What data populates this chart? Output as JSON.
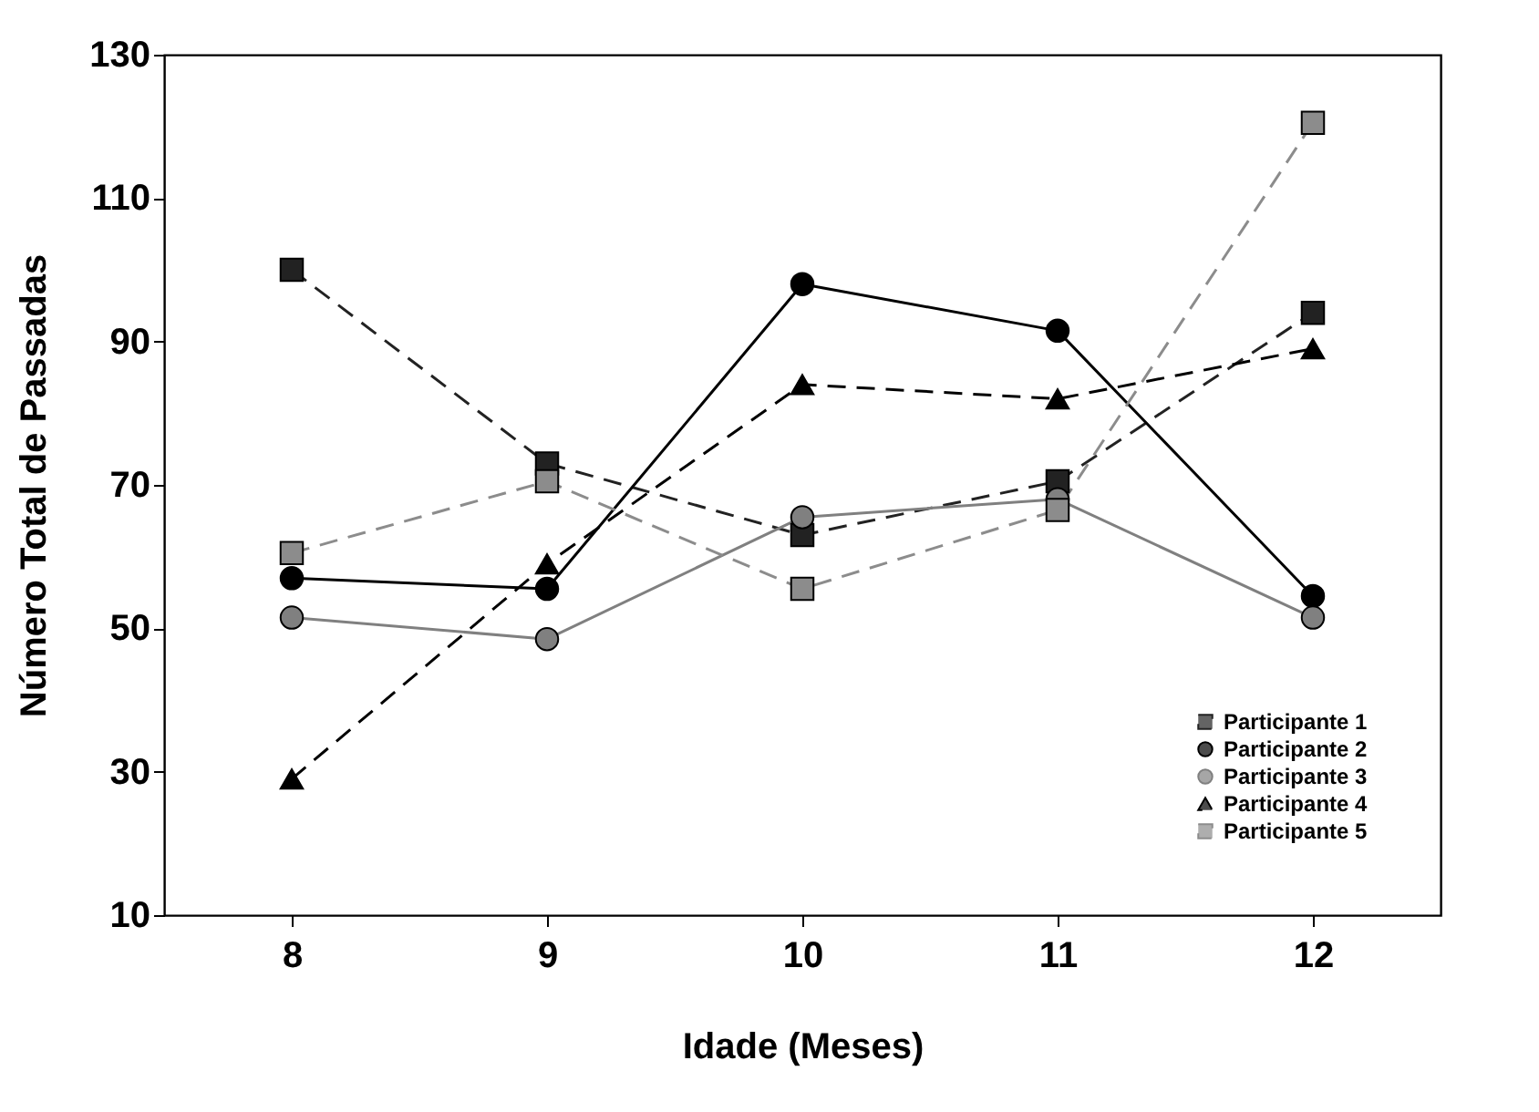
{
  "chart_data": {
    "type": "line",
    "xlabel": "Idade (Meses)",
    "ylabel": "Número Total de Passadas",
    "categories": [
      "8",
      "9",
      "10",
      "11",
      "12"
    ],
    "series": [
      {
        "name": "Participante 1",
        "color": "#222222",
        "marker": "square",
        "line_style": "dashed",
        "values": [
          100,
          73,
          63,
          70.5,
          94
        ]
      },
      {
        "name": "Participante 2",
        "color": "#000000",
        "marker": "circle",
        "line_style": "solid",
        "values": [
          57,
          55.5,
          98,
          91.5,
          54.5
        ]
      },
      {
        "name": "Participante 3",
        "color": "#808080",
        "marker": "circle",
        "line_style": "solid",
        "values": [
          51.5,
          48.5,
          65.5,
          68,
          51.5
        ]
      },
      {
        "name": "Participante 4",
        "color": "#000000",
        "marker": "triangle",
        "line_style": "dashed",
        "values": [
          29,
          59,
          84,
          82,
          89
        ]
      },
      {
        "name": "Participante 5",
        "color": "#8c8c8c",
        "marker": "square",
        "line_style": "dashed",
        "values": [
          60.5,
          70.5,
          55.5,
          66.5,
          120.5
        ]
      }
    ],
    "ylim": [
      10,
      130
    ],
    "yticks": [
      10,
      30,
      50,
      70,
      90,
      110,
      130
    ],
    "grid": false,
    "legend": "bottom right"
  }
}
